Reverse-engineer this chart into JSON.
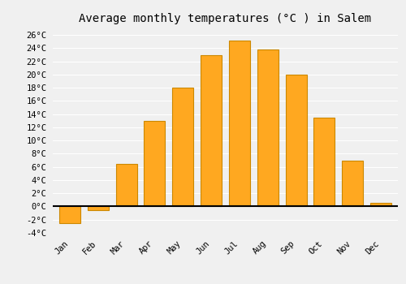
{
  "title": "Average monthly temperatures (°C ) in Salem",
  "months": [
    "Jan",
    "Feb",
    "Mar",
    "Apr",
    "May",
    "Jun",
    "Jul",
    "Aug",
    "Sep",
    "Oct",
    "Nov",
    "Dec"
  ],
  "values": [
    -2.5,
    -0.5,
    6.5,
    13.0,
    18.0,
    23.0,
    25.2,
    23.8,
    20.0,
    13.5,
    7.0,
    0.5
  ],
  "bar_color": "#FFA820",
  "bar_edge_color": "#CC8800",
  "ylim": [
    -4,
    27
  ],
  "yticks": [
    -4,
    -2,
    0,
    2,
    4,
    6,
    8,
    10,
    12,
    14,
    16,
    18,
    20,
    22,
    24,
    26
  ],
  "ytick_labels": [
    "-4°C",
    "-2°C",
    "0°C",
    "2°C",
    "4°C",
    "6°C",
    "8°C",
    "10°C",
    "12°C",
    "14°C",
    "16°C",
    "18°C",
    "20°C",
    "22°C",
    "24°C",
    "26°C"
  ],
  "background_color": "#f0f0f0",
  "grid_color": "#ffffff",
  "title_fontsize": 10,
  "tick_fontsize": 7.5,
  "bar_width": 0.75
}
